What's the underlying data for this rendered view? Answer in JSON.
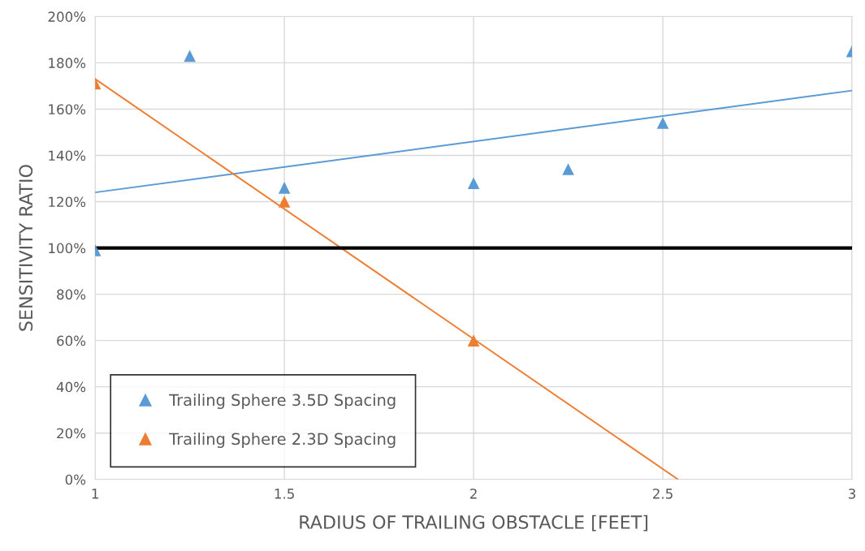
{
  "chart_data": {
    "type": "scatter",
    "xlabel": "RADIUS OF TRAILING OBSTACLE [FEET]",
    "ylabel": "SENSITIVITY RATIO",
    "series": [
      {
        "name": "Trailing Sphere 3.5D Spacing",
        "color": "#5b9bd5",
        "marker": "triangle",
        "x": [
          1,
          1.25,
          1.5,
          2,
          2.25,
          2.5,
          3
        ],
        "values": [
          99,
          183,
          126,
          128,
          134,
          154,
          185
        ]
      },
      {
        "name": "Trailing Sphere 2.3D Spacing",
        "color": "#ed7d31",
        "marker": "triangle",
        "x": [
          1,
          1.5,
          2
        ],
        "values": [
          171,
          120,
          60
        ]
      },
      {
        "type": "line",
        "color": "#5b9bd5",
        "x": [
          1,
          3
        ],
        "values": [
          124,
          168
        ],
        "marker": "none"
      },
      {
        "type": "line",
        "color": "#ed7d31",
        "x": [
          1,
          2.54
        ],
        "values": [
          173,
          0
        ],
        "marker": "none"
      }
    ],
    "ref_lines": [
      {
        "axis": "y",
        "value": 100,
        "color": "#000000"
      }
    ],
    "xlim": [
      1,
      3
    ],
    "xticks": [
      1,
      1.5,
      2,
      2.5,
      3
    ],
    "ylim": [
      0,
      200
    ],
    "yticks": [
      {
        "value": 0,
        "label": "0%"
      },
      {
        "value": 20,
        "label": "20%"
      },
      {
        "value": 40,
        "label": "40%"
      },
      {
        "value": 60,
        "label": "60%"
      },
      {
        "value": 80,
        "label": "80%"
      },
      {
        "value": 100,
        "label": "100%"
      },
      {
        "value": 120,
        "label": "120%"
      },
      {
        "value": 140,
        "label": "140%"
      },
      {
        "value": 160,
        "label": "160%"
      },
      {
        "value": 180,
        "label": "180%"
      },
      {
        "value": 200,
        "label": "200%"
      }
    ],
    "grid": true,
    "legend": "bottom left"
  }
}
